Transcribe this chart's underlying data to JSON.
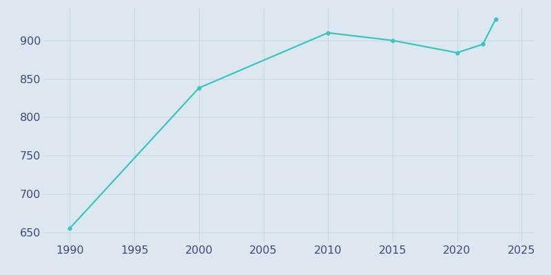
{
  "years": [
    1990,
    2000,
    2010,
    2015,
    2020,
    2022,
    2023
  ],
  "population": [
    655,
    838,
    910,
    900,
    884,
    895,
    928
  ],
  "line_color": "#38c5c0",
  "marker": "o",
  "marker_size": 3.5,
  "line_width": 1.6,
  "background_color": "#dce7f0",
  "plot_bg_color": "#dce7f0",
  "grid_color": "#c8d8e8",
  "tick_label_color": "#3a4a7a",
  "xlim": [
    1988,
    2026
  ],
  "ylim": [
    637,
    942
  ],
  "xticks": [
    1990,
    1995,
    2000,
    2005,
    2010,
    2015,
    2020,
    2025
  ],
  "yticks": [
    650,
    700,
    750,
    800,
    850,
    900
  ],
  "tick_fontsize": 11.5
}
